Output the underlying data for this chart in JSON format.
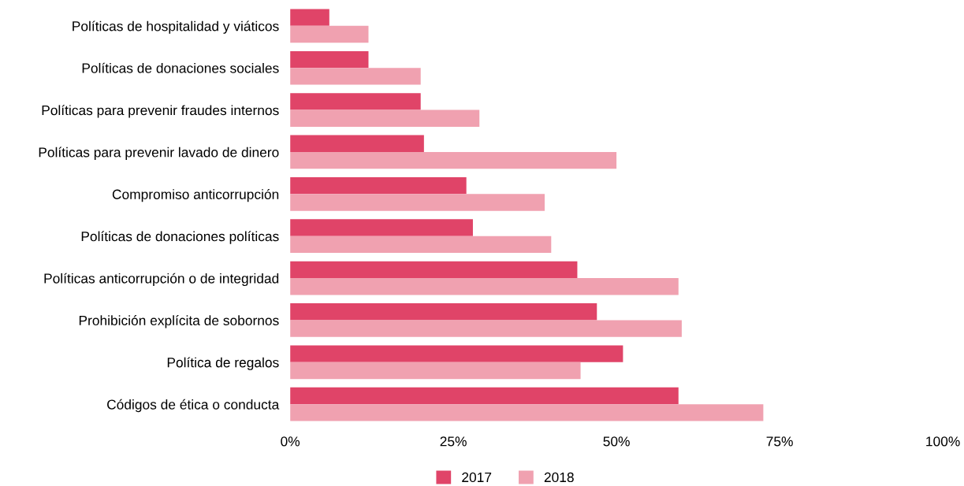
{
  "chart_data": {
    "type": "bar",
    "orientation": "horizontal",
    "categories": [
      "Políticas de hospitalidad y viáticos",
      "Políticas de donaciones sociales",
      "Políticas para prevenir fraudes internos",
      "Políticas para prevenir lavado de dinero",
      "Compromiso anticorrupción",
      "Políticas de donaciones políticas",
      "Políticas anticorrupción o de integridad",
      "Prohibición explícita de sobornos",
      "Política de regalos",
      "Códigos de ética o conducta"
    ],
    "series": [
      {
        "name": "2017",
        "color": "#e04468",
        "values": [
          6,
          12,
          20,
          20.5,
          27,
          28,
          44,
          47,
          51,
          59.5
        ]
      },
      {
        "name": "2018",
        "color": "#f0a1b0",
        "values": [
          12,
          20,
          29,
          50,
          39,
          40,
          59.5,
          60,
          44.5,
          72.5
        ]
      }
    ],
    "xlim": [
      0,
      100
    ],
    "xticks": [
      {
        "value": 0,
        "label": "0%"
      },
      {
        "value": 25,
        "label": "25%"
      },
      {
        "value": 50,
        "label": "50%"
      },
      {
        "value": 75,
        "label": "75%"
      },
      {
        "value": 100,
        "label": "100%"
      }
    ],
    "grid": false,
    "legend": "bottom"
  }
}
